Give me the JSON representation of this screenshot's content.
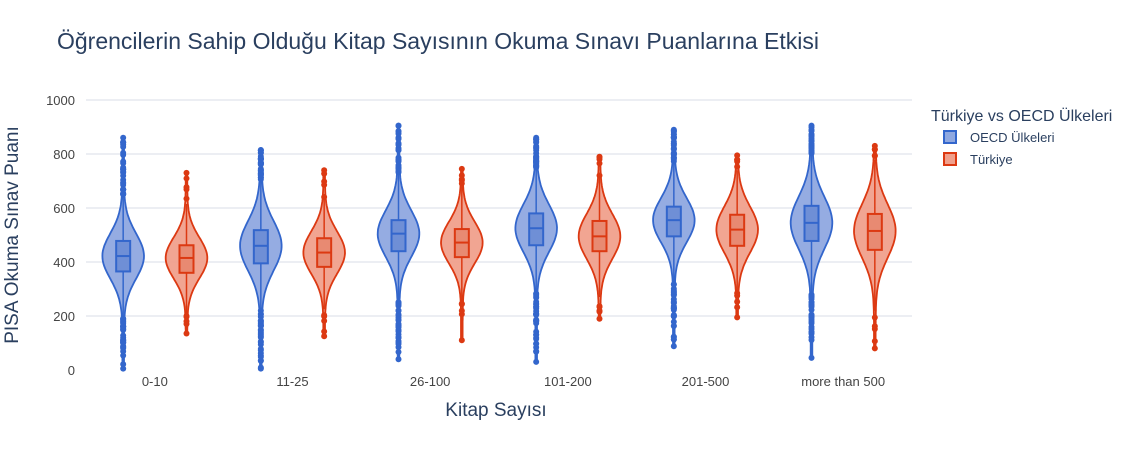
{
  "chart_data": {
    "type": "violin",
    "title": "Öğrencilerin Sahip Olduğu Kitap Sayısının Okuma Sınavı Puanlarına Etkisi",
    "xlabel": "Kitap Sayısı",
    "ylabel": "PISA Okuma Sınav Puanı",
    "ylim": [
      0,
      1000
    ],
    "yticks": [
      0,
      200,
      400,
      600,
      800,
      1000
    ],
    "grid": true,
    "legend_title": "Türkiye vs OECD Ülkeleri",
    "legend_position": "right",
    "categories": [
      "0-10",
      "11-25",
      "26-100",
      "101-200",
      "201-500",
      "more than 500"
    ],
    "series": [
      {
        "name": "OECD Ülkeleri",
        "color": "#3366cc",
        "fill": "#8fa8e0",
        "stats": [
          {
            "min": 5,
            "q1": 365,
            "median": 422,
            "q3": 478,
            "max": 860,
            "wlow": 195,
            "whigh": 650
          },
          {
            "min": 5,
            "q1": 395,
            "median": 460,
            "q3": 518,
            "max": 815,
            "wlow": 220,
            "whigh": 700
          },
          {
            "min": 40,
            "q1": 440,
            "median": 505,
            "q3": 555,
            "max": 905,
            "wlow": 260,
            "whigh": 730
          },
          {
            "min": 30,
            "q1": 462,
            "median": 525,
            "q3": 580,
            "max": 860,
            "wlow": 290,
            "whigh": 750
          },
          {
            "min": 88,
            "q1": 495,
            "median": 555,
            "q3": 605,
            "max": 890,
            "wlow": 320,
            "whigh": 770
          },
          {
            "min": 45,
            "q1": 478,
            "median": 545,
            "q3": 608,
            "max": 905,
            "wlow": 285,
            "whigh": 800
          }
        ]
      },
      {
        "name": "Türkiye",
        "color": "#dc3912",
        "fill": "#f0a08c",
        "stats": [
          {
            "min": 135,
            "q1": 360,
            "median": 415,
            "q3": 462,
            "max": 730,
            "wlow": 205,
            "whigh": 615
          },
          {
            "min": 125,
            "q1": 382,
            "median": 435,
            "q3": 488,
            "max": 740,
            "wlow": 225,
            "whigh": 640
          },
          {
            "min": 110,
            "q1": 418,
            "median": 472,
            "q3": 522,
            "max": 745,
            "wlow": 255,
            "whigh": 680
          },
          {
            "min": 190,
            "q1": 440,
            "median": 495,
            "q3": 552,
            "max": 790,
            "wlow": 270,
            "whigh": 715
          },
          {
            "min": 195,
            "q1": 460,
            "median": 520,
            "q3": 575,
            "max": 795,
            "wlow": 290,
            "whigh": 740
          },
          {
            "min": 80,
            "q1": 445,
            "median": 515,
            "q3": 578,
            "max": 830,
            "wlow": 220,
            "whigh": 780
          }
        ]
      }
    ]
  }
}
